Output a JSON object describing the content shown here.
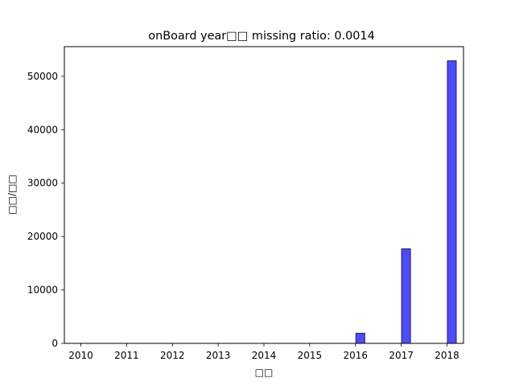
{
  "chart_data": {
    "type": "bar",
    "title": "onBoard year□□  missing ratio: 0.0014",
    "xlabel": "□□",
    "ylabel": "□□/□□",
    "x": [
      2010,
      2011,
      2012,
      2013,
      2014,
      2015,
      2016,
      2017,
      2018
    ],
    "values": [
      0,
      0,
      0,
      0,
      0,
      0,
      1900,
      17700,
      52900
    ],
    "xlim": [
      2009.64,
      2018.36
    ],
    "ylim": [
      0,
      55545
    ],
    "yticks": [
      0,
      10000,
      20000,
      30000,
      40000,
      50000
    ],
    "xticks": [
      2010,
      2011,
      2012,
      2013,
      2014,
      2015,
      2016,
      2017,
      2018
    ],
    "bar_color": "#0000ff",
    "bar_edge_color": "#202060",
    "grid": false
  }
}
